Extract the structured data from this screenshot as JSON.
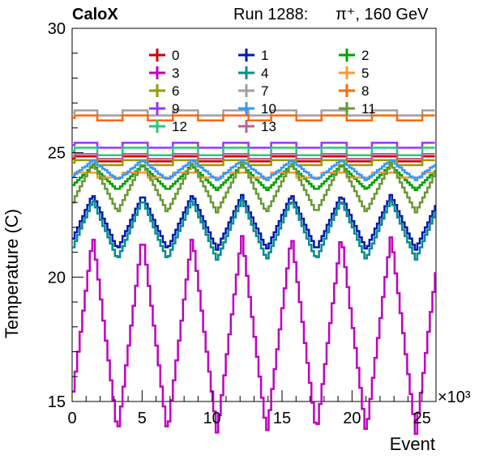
{
  "header": {
    "experiment": "CaloX",
    "run_label": "Run 1288:",
    "particle": "π⁺, 160 GeV"
  },
  "chart_data": {
    "type": "line",
    "title": "",
    "xlabel": "Event",
    "ylabel": "Temperature (C)",
    "x_multiplier_label": "×10³",
    "xlim": [
      0,
      26
    ],
    "ylim": [
      15,
      30
    ],
    "x_ticks": [
      0,
      5,
      10,
      15,
      20,
      25
    ],
    "y_ticks": [
      15,
      20,
      25,
      30
    ],
    "x_unit_note": "events in thousands",
    "legend_columns": 3,
    "legend_placement": "top, inside plot",
    "series": [
      {
        "name": "0",
        "color": "#cc0000",
        "shape": "flat",
        "base": 24.75,
        "amp": 0.1
      },
      {
        "name": "1",
        "color": "#0018b0",
        "shape": "triangle",
        "base": 22.2,
        "amp": 1.1
      },
      {
        "name": "2",
        "color": "#00a000",
        "shape": "triangle",
        "base": 24.0,
        "amp": 0.5
      },
      {
        "name": "3",
        "color": "#c000c0",
        "shape": "triangle",
        "base": 17.7,
        "amp": 4.0
      },
      {
        "name": "4",
        "color": "#008c8c",
        "shape": "triangle",
        "base": 21.9,
        "amp": 1.2
      },
      {
        "name": "5",
        "color": "#ff9933",
        "shape": "flat",
        "base": 24.1,
        "amp": 0.1
      },
      {
        "name": "6",
        "color": "#999900",
        "shape": "flat",
        "base": 24.6,
        "amp": 0.1
      },
      {
        "name": "7",
        "color": "#a0a0a0",
        "shape": "flat",
        "base": 26.6,
        "amp": 0.1
      },
      {
        "name": "8",
        "color": "#ff6600",
        "shape": "flat",
        "base": 26.4,
        "amp": 0.1
      },
      {
        "name": "9",
        "color": "#9933ff",
        "shape": "flat",
        "base": 25.3,
        "amp": 0.1
      },
      {
        "name": "10",
        "color": "#3399ff",
        "shape": "triangle",
        "base": 24.3,
        "amp": 0.4
      },
      {
        "name": "11",
        "color": "#669933",
        "shape": "triangle",
        "base": 23.6,
        "amp": 1.0
      },
      {
        "name": "12",
        "color": "#22cc77",
        "shape": "flat",
        "base": 25.05,
        "amp": 0.15
      },
      {
        "name": "13",
        "color": "#c06090",
        "shape": "flat",
        "base": 24.85,
        "amp": 0.1
      }
    ],
    "period_k_events": 3.55,
    "phase_k_events": 1.4
  }
}
